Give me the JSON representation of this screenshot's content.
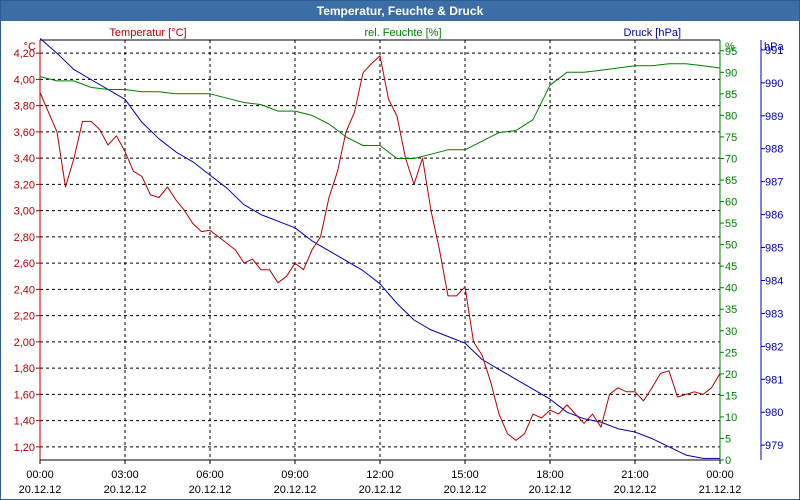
{
  "window": {
    "title": "Temperatur, Feuchte & Druck"
  },
  "colors": {
    "temperature": "#b80000",
    "humidity": "#008000",
    "pressure": "#0000b4",
    "titlebar": "#3a6ea5",
    "grid": "#000000"
  },
  "chart_data": {
    "type": "line",
    "title": "Temperatur, Feuchte & Druck",
    "x_ticks": [
      {
        "time": "00:00",
        "date": "20.12.12"
      },
      {
        "time": "03:00",
        "date": "20.12.12"
      },
      {
        "time": "06:00",
        "date": "20.12.12"
      },
      {
        "time": "09:00",
        "date": "20.12.12"
      },
      {
        "time": "12:00",
        "date": "20.12.12"
      },
      {
        "time": "15:00",
        "date": "20.12.12"
      },
      {
        "time": "18:00",
        "date": "20.12.12"
      },
      {
        "time": "21:00",
        "date": "20.12.12"
      },
      {
        "time": "00:00",
        "date": "21.12.12"
      }
    ],
    "x_range_hours": [
      0,
      24
    ],
    "axes": {
      "temperature": {
        "label": "Temperatur [°C]",
        "unit": "°C",
        "min": 1.1,
        "max": 4.3,
        "ticks": [
          "4,20",
          "4,00",
          "3,80",
          "3,60",
          "3,40",
          "3,20",
          "3,00",
          "2,80",
          "2,60",
          "2,40",
          "2,20",
          "2,00",
          "1,80",
          "1,60",
          "1,40",
          "1,20"
        ]
      },
      "humidity": {
        "label": "rel. Feuchte [%]",
        "unit": "%",
        "min": 0,
        "max": 97.5,
        "ticks": [
          "95",
          "90",
          "85",
          "80",
          "75",
          "70",
          "65",
          "60",
          "55",
          "50",
          "45",
          "40",
          "35",
          "30",
          "25",
          "20",
          "15",
          "10",
          "5",
          "0"
        ]
      },
      "pressure": {
        "label": "Druck [hPa]",
        "unit": "hPa",
        "min": 978.55,
        "max": 991.3,
        "ticks": [
          "991",
          "990",
          "989",
          "988",
          "987",
          "986",
          "985",
          "984",
          "983",
          "982",
          "981",
          "980",
          "979"
        ]
      }
    },
    "series": [
      {
        "name": "Temperatur [°C]",
        "axis": "temperature",
        "x": [
          0,
          0.3,
          0.6,
          0.9,
          1.2,
          1.5,
          1.8,
          2.1,
          2.4,
          2.7,
          3.0,
          3.3,
          3.6,
          3.9,
          4.2,
          4.5,
          4.8,
          5.1,
          5.4,
          5.7,
          6.0,
          6.3,
          6.6,
          6.9,
          7.2,
          7.5,
          7.8,
          8.1,
          8.4,
          8.7,
          9.0,
          9.3,
          9.6,
          9.9,
          10.2,
          10.5,
          10.8,
          11.1,
          11.4,
          11.7,
          12.0,
          12.3,
          12.6,
          12.9,
          13.2,
          13.5,
          13.8,
          14.1,
          14.4,
          14.7,
          15.0,
          15.3,
          15.6,
          15.9,
          16.2,
          16.5,
          16.8,
          17.1,
          17.4,
          17.7,
          18.0,
          18.3,
          18.6,
          18.9,
          19.2,
          19.5,
          19.8,
          20.1,
          20.4,
          20.7,
          21.0,
          21.3,
          21.6,
          21.9,
          22.2,
          22.5,
          22.8,
          23.1,
          23.4,
          23.7,
          24.0
        ],
        "values": [
          3.9,
          3.75,
          3.6,
          3.18,
          3.4,
          3.68,
          3.68,
          3.62,
          3.5,
          3.57,
          3.45,
          3.3,
          3.26,
          3.12,
          3.1,
          3.18,
          3.08,
          3.0,
          2.9,
          2.84,
          2.85,
          2.8,
          2.75,
          2.7,
          2.6,
          2.63,
          2.55,
          2.55,
          2.45,
          2.5,
          2.6,
          2.55,
          2.7,
          2.8,
          3.1,
          3.3,
          3.6,
          3.75,
          4.05,
          4.12,
          4.18,
          3.85,
          3.72,
          3.4,
          3.2,
          3.4,
          3.0,
          2.7,
          2.35,
          2.35,
          2.42,
          2.0,
          1.9,
          1.7,
          1.45,
          1.3,
          1.25,
          1.3,
          1.45,
          1.42,
          1.48,
          1.45,
          1.52,
          1.45,
          1.38,
          1.45,
          1.35,
          1.6,
          1.65,
          1.62,
          1.62,
          1.55,
          1.65,
          1.76,
          1.78,
          1.58,
          1.6,
          1.62,
          1.6,
          1.65,
          1.76
        ]
      },
      {
        "name": "rel. Feuchte [%]",
        "axis": "humidity",
        "x": [
          0,
          0.6,
          1.2,
          1.8,
          2.4,
          3.0,
          3.6,
          4.2,
          4.8,
          5.4,
          6.0,
          6.6,
          7.2,
          7.8,
          8.4,
          9.0,
          9.6,
          10.2,
          10.8,
          11.4,
          12.0,
          12.6,
          13.2,
          13.8,
          14.4,
          15.0,
          15.6,
          16.2,
          16.8,
          17.4,
          18.0,
          18.6,
          19.2,
          19.8,
          20.4,
          21.0,
          21.6,
          22.2,
          22.8,
          23.4,
          24.0
        ],
        "values": [
          89,
          88,
          88,
          86.5,
          86,
          86,
          85.5,
          85.5,
          85,
          85,
          85,
          84,
          83,
          82.5,
          81,
          81,
          80,
          78,
          75,
          73,
          73,
          70,
          70,
          71,
          72,
          72,
          74,
          76,
          76.5,
          79,
          87,
          90,
          90,
          90.5,
          91,
          91.5,
          91.5,
          92,
          92,
          91.5,
          91
        ]
      },
      {
        "name": "Druck [hPa]",
        "axis": "pressure",
        "x": [
          0,
          0.6,
          1.2,
          1.8,
          2.4,
          3.0,
          3.6,
          4.2,
          4.8,
          5.4,
          6.0,
          6.6,
          7.2,
          7.8,
          8.4,
          9.0,
          9.6,
          10.2,
          10.8,
          11.4,
          12.0,
          12.6,
          13.2,
          13.8,
          14.4,
          15.0,
          15.6,
          16.2,
          16.8,
          17.4,
          18.0,
          18.6,
          19.2,
          19.8,
          20.4,
          21.0,
          21.6,
          22.2,
          22.8,
          23.4,
          24.0
        ],
        "values": [
          991.35,
          990.9,
          990.4,
          990.1,
          989.8,
          989.5,
          988.8,
          988.3,
          987.9,
          987.6,
          987.2,
          986.8,
          986.3,
          986.0,
          985.8,
          985.6,
          985.2,
          984.9,
          984.6,
          984.3,
          983.9,
          983.3,
          982.8,
          982.5,
          982.3,
          982.1,
          981.6,
          981.3,
          981.0,
          980.7,
          980.4,
          980.0,
          979.8,
          979.7,
          979.5,
          979.4,
          979.2,
          978.95,
          978.7,
          978.6,
          978.6
        ]
      }
    ]
  }
}
